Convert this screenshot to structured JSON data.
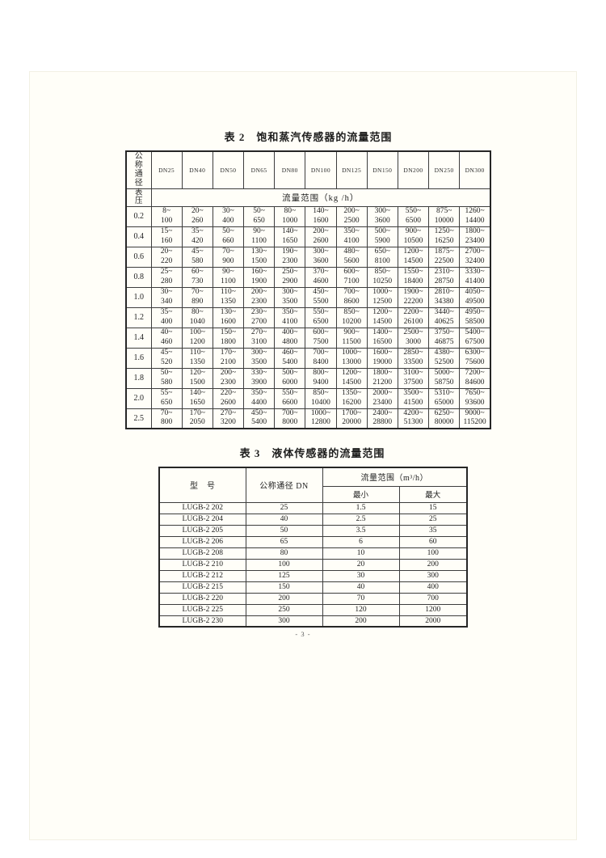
{
  "footer": {
    "page_number": "- 3 -"
  },
  "table2": {
    "title": "表 2　饱和蒸汽传感器的流量范围",
    "corner_header": "公称通径",
    "pressure_header": "表压",
    "flow_range_header": "流量范围（kg /h）",
    "dn_columns": [
      "DN25",
      "DN40",
      "DN50",
      "DN65",
      "DN80",
      "DN100",
      "DN125",
      "DN150",
      "DN200",
      "DN250",
      "DN300"
    ],
    "rows": [
      {
        "pressure": "0.2",
        "cells": [
          "8~\n100",
          "20~\n260",
          "30~\n400",
          "50~\n650",
          "80~\n1000",
          "140~\n1600",
          "200~\n2500",
          "300~\n3600",
          "550~\n6500",
          "875~\n10000",
          "1260~\n14400"
        ]
      },
      {
        "pressure": "0.4",
        "cells": [
          "15~\n160",
          "35~\n420",
          "50~\n660",
          "90~\n1100",
          "140~\n1650",
          "200~\n2600",
          "350~\n4100",
          "500~\n5900",
          "900~\n10500",
          "1250~\n16250",
          "1800~\n23400"
        ]
      },
      {
        "pressure": "0.6",
        "cells": [
          "20~\n220",
          "45~\n580",
          "70~\n900",
          "130~\n1500",
          "190~\n2300",
          "300~\n3600",
          "480~\n5600",
          "650~\n8100",
          "1200~\n14500",
          "1875~\n22500",
          "2700~\n32400"
        ]
      },
      {
        "pressure": "0.8",
        "cells": [
          "25~\n280",
          "60~\n730",
          "90~\n1100",
          "160~\n1900",
          "250~\n2900",
          "370~\n4600",
          "600~\n7100",
          "850~\n10250",
          "1550~\n18400",
          "2310~\n28750",
          "3330~\n41400"
        ]
      },
      {
        "pressure": "1.0",
        "cells": [
          "30~\n340",
          "70~\n890",
          "110~\n1350",
          "200~\n2300",
          "300~\n3500",
          "450~\n5500",
          "700~\n8600",
          "1000~\n12500",
          "1900~\n22200",
          "2810~\n34380",
          "4050~\n49500"
        ]
      },
      {
        "pressure": "1.2",
        "cells": [
          "35~\n400",
          "80~\n1040",
          "130~\n1600",
          "230~\n2700",
          "350~\n4100",
          "550~\n6500",
          "850~\n10200",
          "1200~\n14500",
          "2200~\n26100",
          "3440~\n40625",
          "4950~\n58500"
        ]
      },
      {
        "pressure": "1.4",
        "cells": [
          "40~\n460",
          "100~\n1200",
          "150~\n1800",
          "270~\n3100",
          "400~\n4800",
          "600~\n7500",
          "900~\n11500",
          "1400~\n16500",
          "2500~\n3000",
          "3750~\n46875",
          "5400~\n67500"
        ]
      },
      {
        "pressure": "1.6",
        "cells": [
          "45~\n520",
          "110~\n1350",
          "170~\n2100",
          "300~\n3500",
          "460~\n5400",
          "700~\n8400",
          "1000~\n13000",
          "1600~\n19000",
          "2850~\n33500",
          "4380~\n52500",
          "6300~\n75600"
        ]
      },
      {
        "pressure": "1.8",
        "cells": [
          "50~\n580",
          "120~\n1500",
          "200~\n2300",
          "330~\n3900",
          "500~\n6000",
          "800~\n9400",
          "1200~\n14500",
          "1800~\n21200",
          "3100~\n37500",
          "5000~\n58750",
          "7200~\n84600"
        ]
      },
      {
        "pressure": "2.0",
        "cells": [
          "55~\n650",
          "140~\n1650",
          "220~\n2600",
          "350~\n4400",
          "550~\n6600",
          "850~\n10400",
          "1350~\n16200",
          "2000~\n23400",
          "3500~\n41500",
          "5310~\n65000",
          "7650~\n93600"
        ]
      },
      {
        "pressure": "2.5",
        "cells": [
          "70~\n800",
          "170~\n2050",
          "270~\n3200",
          "450~\n5400",
          "700~\n8000",
          "1000~\n12800",
          "1700~\n20000",
          "2400~\n28800",
          "4200~\n51300",
          "6250~\n80000",
          "9000~\n115200"
        ]
      }
    ]
  },
  "table3": {
    "title": "表 3　液体传感器的流量范围",
    "headers": {
      "model": "型　号",
      "dn": "公称通径 DN",
      "flow_range": "流量范围（m³/h）",
      "min": "最小",
      "max": "最大"
    },
    "rows": [
      {
        "model": "LUGB-2 202",
        "dn": "25",
        "min": "1.5",
        "max": "15"
      },
      {
        "model": "LUGB-2 204",
        "dn": "40",
        "min": "2.5",
        "max": "25"
      },
      {
        "model": "LUGB-2 205",
        "dn": "50",
        "min": "3.5",
        "max": "35"
      },
      {
        "model": "LUGB-2 206",
        "dn": "65",
        "min": "6",
        "max": "60"
      },
      {
        "model": "LUGB-2 208",
        "dn": "80",
        "min": "10",
        "max": "100"
      },
      {
        "model": "LUGB-2 210",
        "dn": "100",
        "min": "20",
        "max": "200"
      },
      {
        "model": "LUGB-2 212",
        "dn": "125",
        "min": "30",
        "max": "300"
      },
      {
        "model": "LUGB-2 215",
        "dn": "150",
        "min": "40",
        "max": "400"
      },
      {
        "model": "LUGB-2 220",
        "dn": "200",
        "min": "70",
        "max": "700"
      },
      {
        "model": "LUGB-2 225",
        "dn": "250",
        "min": "120",
        "max": "1200"
      },
      {
        "model": "LUGB-2 230",
        "dn": "300",
        "min": "200",
        "max": "2000"
      }
    ]
  }
}
